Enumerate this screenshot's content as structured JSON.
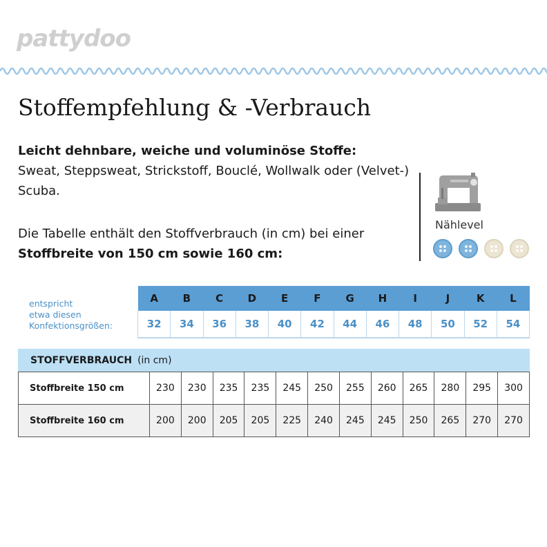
{
  "brand": {
    "logo_text": "pattydoo"
  },
  "title": "Stoffempfehlung & -Verbrauch",
  "description": {
    "bold_intro": "Leicht dehnbare, weiche und voluminöse Stoffe:",
    "fabrics": "Sweat, Steppsweat, Strickstoff, Bouclé, Wollwalk oder (Velvet-) Scuba."
  },
  "table_note": {
    "text": "Die Tabelle enthält den Stoffverbrauch (in cm) bei einer",
    "bold": "Stoffbreite von 150 cm sowie 160 cm:"
  },
  "sewing_level": {
    "label": "Nählevel",
    "icon": "sewing-machine-icon",
    "level": 2,
    "max": 4,
    "color_active": "#7fb4dd",
    "color_inactive": "#ece5d2"
  },
  "size_caption": [
    "entspricht",
    "etwa diesen",
    "Konfektionsgrößen:"
  ],
  "size_letters": [
    "A",
    "B",
    "C",
    "D",
    "E",
    "F",
    "G",
    "H",
    "I",
    "J",
    "K",
    "L"
  ],
  "size_numbers": [
    "32",
    "34",
    "36",
    "38",
    "40",
    "42",
    "44",
    "46",
    "48",
    "50",
    "52",
    "54"
  ],
  "consumption": {
    "header_bold": "STOFFVERBRAUCH",
    "header_unit": "(in cm)",
    "rows": [
      {
        "label": "Stoffbreite 150 cm",
        "values": [
          "230",
          "230",
          "235",
          "235",
          "245",
          "250",
          "255",
          "260",
          "265",
          "280",
          "295",
          "300"
        ]
      },
      {
        "label": "Stoffbreite 160 cm",
        "values": [
          "200",
          "200",
          "205",
          "205",
          "225",
          "240",
          "245",
          "245",
          "250",
          "265",
          "270",
          "270"
        ]
      }
    ]
  },
  "colors": {
    "accent_blue": "#5a9ed4",
    "light_blue": "#bde0f5",
    "caption_blue": "#4a90c8"
  }
}
